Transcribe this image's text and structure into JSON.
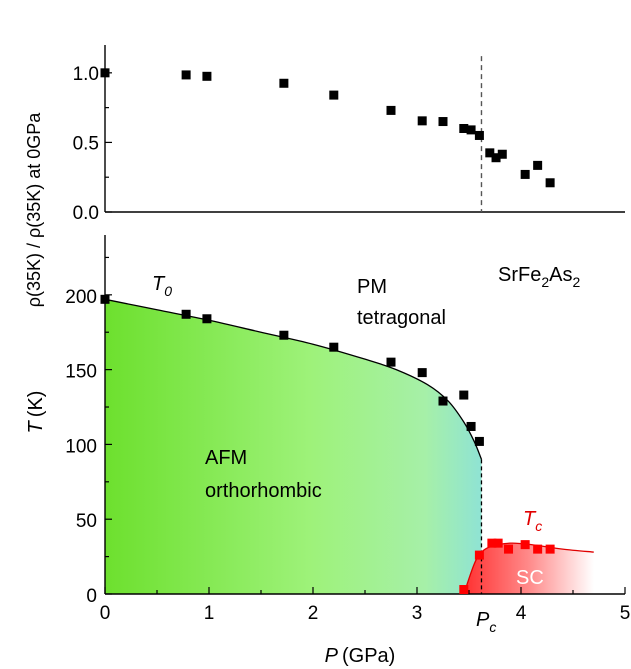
{
  "chart_data": [
    {
      "type": "scatter",
      "panel": "top",
      "ylabel": "ρ(35K) / ρ(35K) at 0GPa",
      "xlim": [
        0,
        5
      ],
      "ylim": [
        0,
        1.2
      ],
      "yticks": [
        "0.0",
        "0.5",
        "1.0"
      ],
      "critical_pressure_line": 3.62,
      "series": [
        {
          "x": [
            0.0,
            0.78,
            0.98,
            1.72,
            2.2,
            2.75,
            3.05,
            3.25,
            3.45,
            3.52,
            3.6,
            3.7,
            3.76,
            3.82,
            4.04,
            4.16,
            4.28
          ],
          "y": [
            1.0,
            0.985,
            0.975,
            0.925,
            0.84,
            0.73,
            0.655,
            0.65,
            0.6,
            0.59,
            0.55,
            0.425,
            0.39,
            0.415,
            0.27,
            0.335,
            0.21
          ]
        }
      ]
    },
    {
      "type": "scatter",
      "panel": "bottom",
      "xlabel_main": "P",
      "xlabel_unit": "(GPa)",
      "ylabel_main": "T",
      "ylabel_unit": "(K)",
      "xlim": [
        0,
        5
      ],
      "ylim": [
        0,
        240
      ],
      "xticks": [
        "0",
        "1",
        "2",
        "3",
        "4",
        "5"
      ],
      "yticks": [
        "0",
        "50",
        "100",
        "150",
        "200"
      ],
      "annotations": {
        "compound": {
          "base": "SrFe",
          "sub1": "2",
          "mid": "As",
          "sub2": "2"
        },
        "t0": {
          "main": "T",
          "sub": "0"
        },
        "tc": {
          "main": "T",
          "sub": "c"
        },
        "pc": {
          "main": "P",
          "sub": "c"
        },
        "pm_line1": "PM",
        "pm_line2": "tetragonal",
        "afm_line1": "AFM",
        "afm_line2": "orthorhombic",
        "sc": "SC"
      },
      "colors": {
        "afm_fill": "#7CFC3C",
        "afm_fill_right": "#8fe8d0",
        "sc_fill": "#ff3a3a",
        "tc_marker": "#ff0000",
        "t0_marker": "#000000"
      },
      "series": [
        {
          "name": "T0",
          "x": [
            0.0,
            0.78,
            0.98,
            1.72,
            2.2,
            2.75,
            3.05,
            3.25,
            3.45,
            3.52,
            3.6
          ],
          "y": [
            197,
            187,
            184,
            173,
            165,
            155,
            148,
            129,
            133,
            112,
            102
          ]
        },
        {
          "name": "Tc",
          "x": [
            3.45,
            3.6,
            3.72,
            3.78,
            3.88,
            4.04,
            4.16,
            4.28
          ],
          "y": [
            3,
            26,
            34,
            34,
            30,
            33,
            30,
            30
          ]
        }
      ],
      "t0_boundary_curve": {
        "x": [
          0.0,
          0.5,
          1.0,
          1.5,
          2.0,
          2.5,
          2.8,
          3.1,
          3.3,
          3.45,
          3.55,
          3.62
        ],
        "y": [
          197,
          190,
          183,
          175,
          167,
          157,
          150,
          140,
          129,
          115,
          102,
          90
        ]
      },
      "tc_boundary_curve": {
        "x": [
          3.45,
          3.55,
          3.62,
          3.72,
          3.9,
          4.1,
          4.4,
          4.7
        ],
        "y": [
          0,
          20,
          28,
          32,
          34,
          33,
          30,
          28
        ]
      }
    }
  ]
}
